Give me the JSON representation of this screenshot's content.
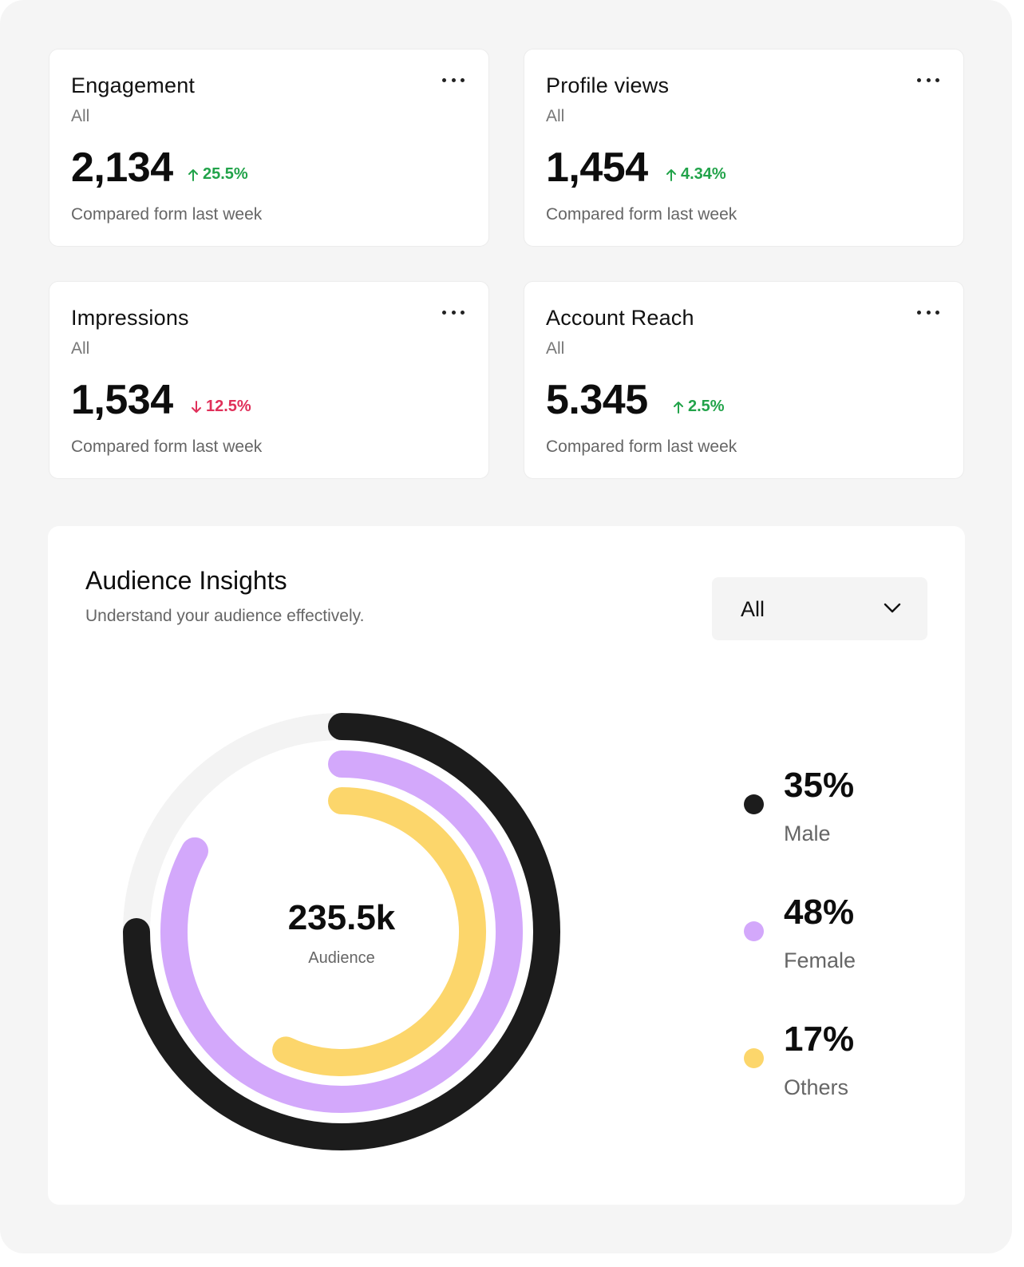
{
  "stats": [
    {
      "title": "Engagement",
      "filter": "All",
      "value": "2,134",
      "change": "25.5%",
      "direction": "up",
      "compare": "Compared form last week"
    },
    {
      "title": "Profile views",
      "filter": "All",
      "value": "1,454",
      "change": "4.34%",
      "direction": "up",
      "compare": "Compared form last week"
    },
    {
      "title": "Impressions",
      "filter": "All",
      "value": "1,534",
      "change": "12.5%",
      "direction": "down",
      "compare": "Compared form last week"
    },
    {
      "title": "Account Reach",
      "filter": "All",
      "value": "5.345",
      "change": "2.5%",
      "direction": "up",
      "compare": "Compared form last week"
    }
  ],
  "insights": {
    "title": "Audience Insights",
    "subtitle": "Understand your audience effectively.",
    "dropdown_value": "All",
    "center_value": "235.5k",
    "center_label": "Audience"
  },
  "colors": {
    "up": "#22a34a",
    "down": "#e0305a",
    "male": "#1c1c1c",
    "female": "#d3a8fb",
    "others": "#fcd66b",
    "track": "#f3f3f3"
  },
  "chart_data": {
    "type": "radial-bar",
    "series": [
      {
        "name": "Male",
        "label": "35%",
        "value": 35,
        "arc_fraction": 0.75
      },
      {
        "name": "Female",
        "label": "48%",
        "value": 48,
        "arc_fraction": 0.83
      },
      {
        "name": "Others",
        "label": "17%",
        "value": 17,
        "arc_fraction": 0.57
      }
    ],
    "legend_position": "right"
  }
}
